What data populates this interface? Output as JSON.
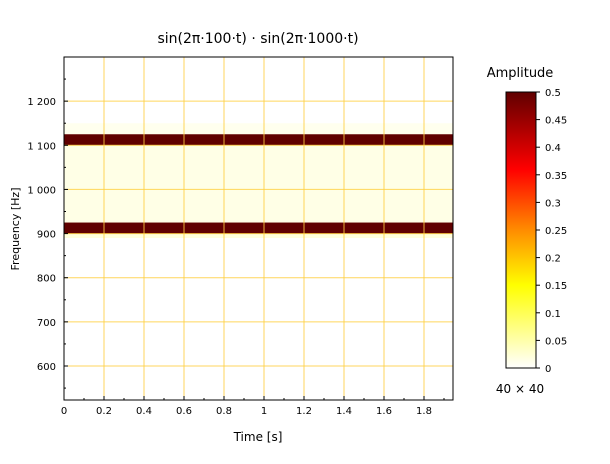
{
  "chart_data": {
    "type": "heatmap",
    "title": "sin(2π·100·t) · sin(2π·1000·t)",
    "xlabel": "Time [s]",
    "ylabel": "Frequency [Hz]",
    "xlim": [
      0,
      1.945
    ],
    "ylim": [
      523,
      1300
    ],
    "xticks": [
      {
        "v": 0,
        "label": "0"
      },
      {
        "v": 0.2,
        "label": "0.2"
      },
      {
        "v": 0.4,
        "label": "0.4"
      },
      {
        "v": 0.6,
        "label": "0.6"
      },
      {
        "v": 0.8,
        "label": "0.8"
      },
      {
        "v": 1,
        "label": "1"
      },
      {
        "v": 1.2,
        "label": "1.2"
      },
      {
        "v": 1.4,
        "label": "1.4"
      },
      {
        "v": 1.6,
        "label": "1.6"
      },
      {
        "v": 1.8,
        "label": "1.8"
      }
    ],
    "yticks": [
      {
        "v": 600,
        "label": "600"
      },
      {
        "v": 700,
        "label": "700"
      },
      {
        "v": 800,
        "label": "800"
      },
      {
        "v": 900,
        "label": "900"
      },
      {
        "v": 1000,
        "label": "1 000"
      },
      {
        "v": 1100,
        "label": "1 100"
      },
      {
        "v": 1200,
        "label": "1 200"
      }
    ],
    "grid": true,
    "bands": [
      {
        "f0": 1050,
        "f1": 1150,
        "value": 0.01
      },
      {
        "f0": 925,
        "f1": 1100,
        "value": 0.015
      },
      {
        "f0": 890,
        "f1": 925,
        "value": 0.02
      },
      {
        "f0": 1100,
        "f1": 1125,
        "value": 0.5
      },
      {
        "f0": 900,
        "f1": 925,
        "value": 0.5
      }
    ],
    "colorbar": {
      "title": "Amplitude",
      "range": [
        0,
        0.5
      ],
      "ticks": [
        "0",
        "0.05",
        "0.1",
        "0.15",
        "0.2",
        "0.25",
        "0.3",
        "0.35",
        "0.4",
        "0.45",
        "0.5"
      ],
      "colors": [
        "#ffffff",
        "#ffff00",
        "#ff8000",
        "#ff0000",
        "#600000"
      ]
    },
    "resolution_label": "40 × 40"
  }
}
